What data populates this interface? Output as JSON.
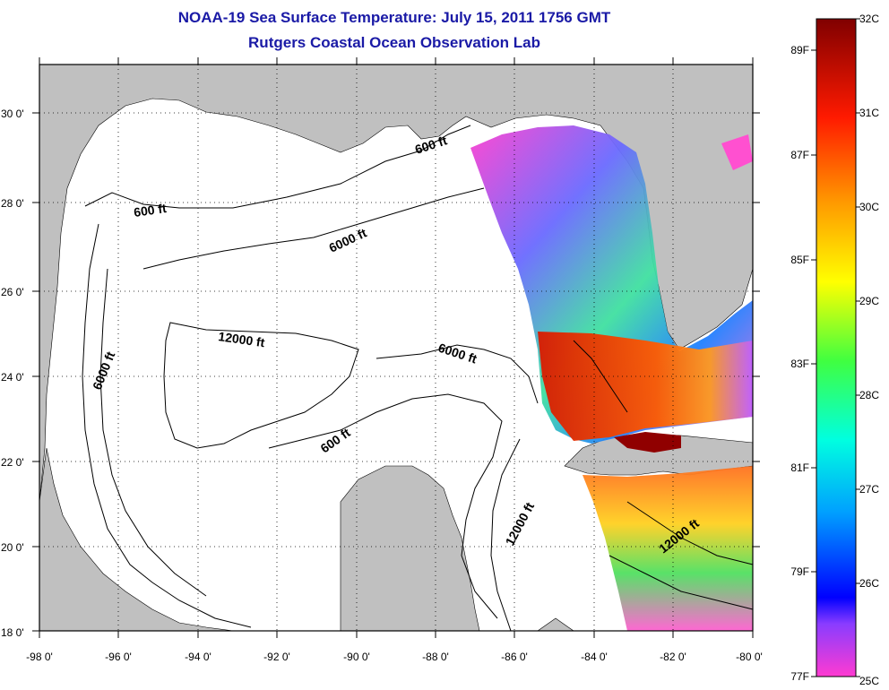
{
  "header": {
    "title": "NOAA-19 Sea Surface Temperature:  July 15, 2011 1756 GMT",
    "subtitle": "Rutgers Coastal Ocean Observation Lab"
  },
  "map": {
    "lon_range": [
      -98,
      -80
    ],
    "lat_range": [
      18,
      31
    ],
    "x_ticks": [
      "-98 0'",
      "-96 0'",
      "-94 0'",
      "-92 0'",
      "-90 0'",
      "-88 0'",
      "-86 0'",
      "-84 0'",
      "-82 0'",
      "-80 0'"
    ],
    "y_ticks": [
      "18 0'",
      "20 0'",
      "22 0'",
      "24 0'",
      "26 0'",
      "28 0'",
      "30 0'"
    ],
    "contour_labels": [
      "600 ft",
      "600 ft",
      "6000 ft",
      "12000 ft",
      "6000 ft",
      "6000 ft",
      "600 ft",
      "12000 ft",
      "12000 ft"
    ],
    "land_color": "#c0c0c0",
    "grid": "dotted"
  },
  "colorbar": {
    "celsius": [
      "32C",
      "31C",
      "30C",
      "29C",
      "28C",
      "27C",
      "26C",
      "25C"
    ],
    "fahrenheit": [
      "89F",
      "87F",
      "85F",
      "83F",
      "81F",
      "79F",
      "77F"
    ]
  }
}
